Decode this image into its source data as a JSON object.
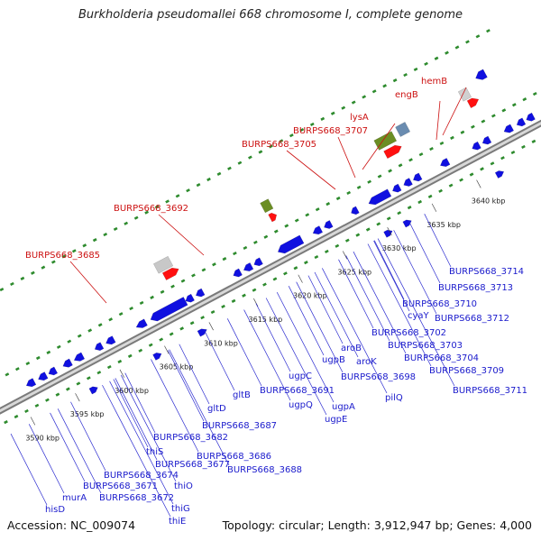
{
  "title": "Burkholderia pseudomallei 668 chromosome I, complete genome",
  "footer": {
    "accession": "Accession: NC_009074",
    "topology": "Topology: circular; Length: 3,912,947 bp; Genes: 4,000"
  },
  "colors": {
    "gene_blue": "#1010e0",
    "gene_red": "#ff1010",
    "label_blue": "#1a1acc",
    "label_red": "#cc1111",
    "tick_green": "#2e8b2e",
    "backbone": "#909090"
  },
  "kbp_ticks": [
    "3590 kbp",
    "3595 kbp",
    "3600 kbp",
    "3605 kbp",
    "3610 kbp",
    "3615 kbp",
    "3620 kbp",
    "3625 kbp",
    "3630 kbp",
    "3635 kbp",
    "3640 kbp"
  ],
  "red_labels": [
    "BURPS668_3685",
    "BURPS668_3692",
    "BURPS668_3705",
    "BURPS668_3707",
    "lysA",
    "engB",
    "hemB"
  ],
  "blue_labels": [
    "hisD",
    "murA",
    "BURPS668_3672",
    "thiE",
    "thiG",
    "BURPS668_3671",
    "thiO",
    "BURPS668_3674",
    "BURPS668_3677",
    "thiS",
    "BURPS668_3682",
    "BURPS668_3688",
    "BURPS668_3686",
    "BURPS668_3687",
    "gltD",
    "gltB",
    "BURPS668_3691",
    "ugpQ",
    "ugpC",
    "ugpE",
    "ugpA",
    "ugpB",
    "pilQ",
    "BURPS668_3698",
    "aroK",
    "aroB",
    "BURPS668_3702",
    "BURPS668_3703",
    "BURPS668_3704",
    "BURPS668_3709",
    "BURPS668_3711",
    "BURPS668_3712",
    "BURPS668_3710",
    "cyaY",
    "BURPS668_3713",
    "BURPS668_3714"
  ]
}
